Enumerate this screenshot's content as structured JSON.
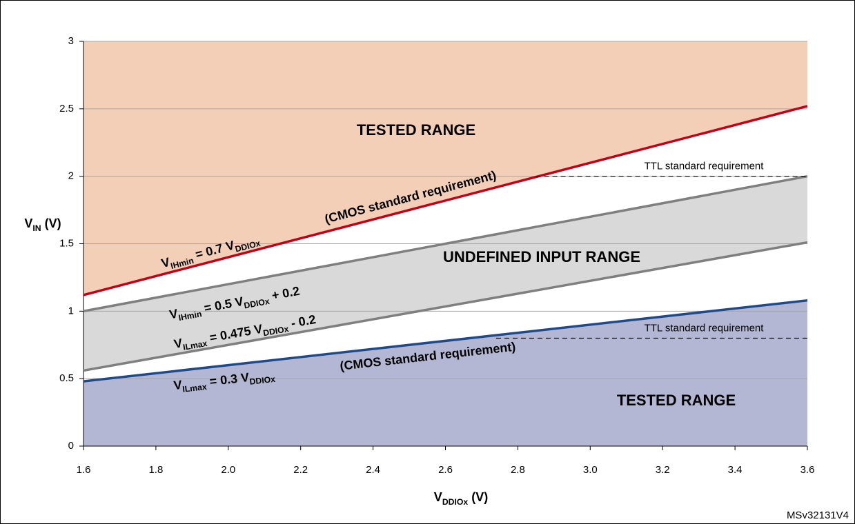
{
  "chart_data": {
    "type": "line",
    "x": [
      1.6,
      3.6
    ],
    "xlim": [
      1.6,
      3.6
    ],
    "xticks": [
      1.6,
      1.8,
      {
        "value": 2.0,
        "label": "2.0"
      },
      2.2,
      2.4,
      2.6,
      2.8,
      {
        "value": 3.0,
        "label": "3.0"
      },
      3.2,
      3.4,
      3.6
    ],
    "ylim": [
      0,
      3
    ],
    "yticks": [
      0,
      0.5,
      1,
      1.5,
      2,
      2.5,
      3
    ],
    "grid": true,
    "xlabel": [
      "V",
      "DDIOx",
      " (V)"
    ],
    "ylabel": [
      "V",
      "IN",
      " (V)"
    ],
    "series": [
      {
        "label": [
          "V",
          "IHmin",
          " = 0.7 V",
          "DDIOx"
        ],
        "color": "#c00018",
        "values": [
          1.12,
          2.52
        ]
      },
      {
        "label": [
          "V",
          "IHmin",
          " = 0.5 V",
          "DDIOx",
          " + 0.2"
        ],
        "color": "#7f7f7f",
        "values": [
          1.0,
          2.0
        ]
      },
      {
        "label": [
          "V",
          "ILmax",
          " = 0.475 V",
          "DDIOx",
          " - 0.2"
        ],
        "color": "#7f7f7f",
        "values": [
          0.56,
          1.51
        ]
      },
      {
        "label": [
          "V",
          "ILmax",
          " = 0.3 V",
          "DDIOx"
        ],
        "color": "#1f4a8a",
        "values": [
          0.48,
          1.08
        ]
      }
    ],
    "ttl_lines": [
      {
        "x": [
          2.85,
          3.6
        ],
        "y": 2.0,
        "label": "TTL standard requirement"
      },
      {
        "x": [
          2.74,
          3.6
        ],
        "y": 0.8,
        "label": "TTL standard requirement"
      }
    ],
    "annotations": {
      "tested_high": "TESTED RANGE",
      "cmos_high": "(CMOS standard requirement)",
      "undefined": "UNDEFINED INPUT RANGE",
      "cmos_low": "(CMOS standard requirement)",
      "tested_low": "TESTED RANGE",
      "code": "MSv32131V4"
    }
  }
}
